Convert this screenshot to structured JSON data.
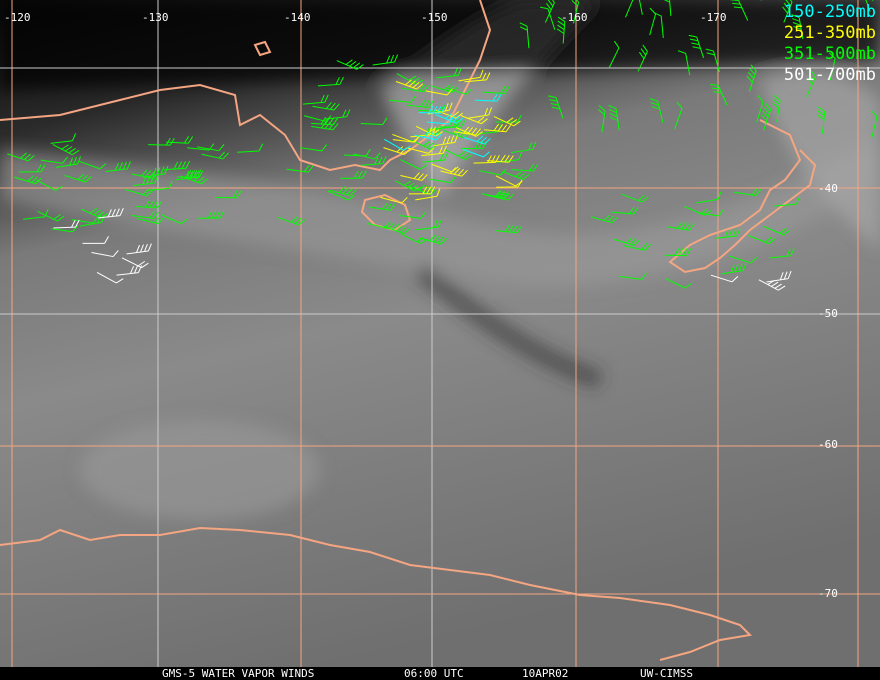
{
  "map": {
    "longitude_labels": [
      "-120",
      "-130",
      "-140",
      "-150",
      "-160",
      "-170"
    ],
    "latitude_labels": [
      "-40",
      "-50",
      "-60",
      "-70"
    ],
    "colors": {
      "coastline": "#f4a582",
      "grid_orange": "#f4a582",
      "grid_white": "#cccccc"
    }
  },
  "legend": [
    {
      "label": "150-250mb",
      "color": "#00ffff"
    },
    {
      "label": "251-350mb",
      "color": "#ffff00"
    },
    {
      "label": "351-500mb",
      "color": "#00ff00"
    },
    {
      "label": "501-700mb",
      "color": "#ffffff"
    }
  ],
  "footer": {
    "satellite": "GMS-5 WATER VAPOR WINDS",
    "time": "06:00 UTC",
    "date": "10APR02",
    "source": "UW-CIMSS"
  }
}
